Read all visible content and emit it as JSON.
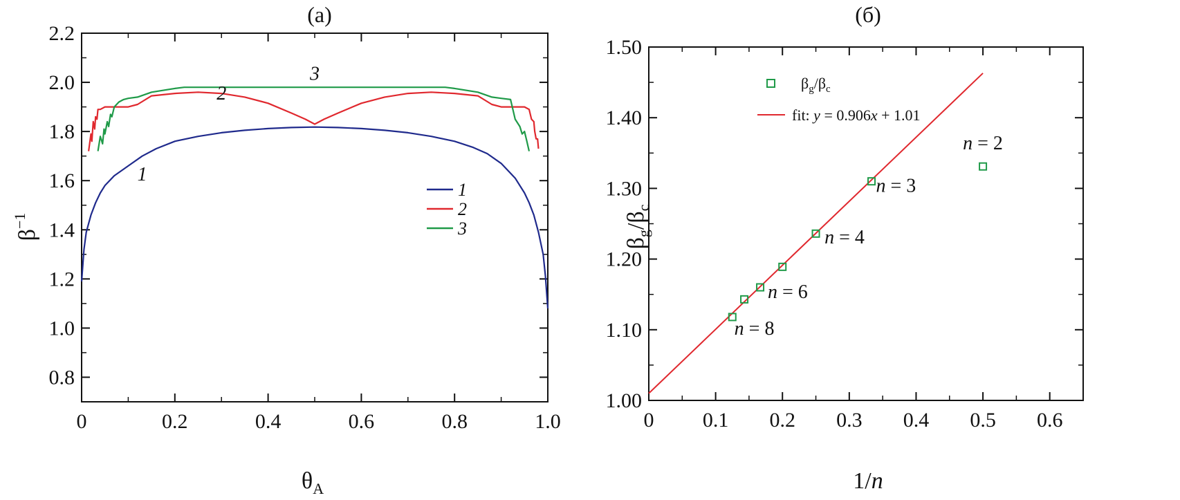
{
  "chart_data": [
    {
      "type": "line",
      "title": "(a)",
      "xlabel": "θ",
      "xlabel_sub": "A",
      "ylabel": "β",
      "ylabel_sup": "−1",
      "xlim": [
        0,
        1.0
      ],
      "ylim": [
        0.7,
        2.2
      ],
      "xticks": [
        0,
        0.2,
        0.4,
        0.6,
        0.8,
        1.0
      ],
      "xtick_labels": [
        "0",
        "0.2",
        "0.4",
        "0.6",
        "0.8",
        "1.0"
      ],
      "yticks": [
        0.8,
        1.0,
        1.2,
        1.4,
        1.6,
        1.8,
        2.0,
        2.2
      ],
      "ytick_labels": [
        "0.8",
        "1.0",
        "1.2",
        "1.4",
        "1.6",
        "1.8",
        "2.0",
        "2.2"
      ],
      "legend": {
        "position": "center-right",
        "entries": [
          "1",
          "2",
          "3"
        ]
      },
      "series": [
        {
          "name": "1",
          "color": "#1f2a8c",
          "x": [
            0.0,
            0.005,
            0.01,
            0.02,
            0.03,
            0.04,
            0.05,
            0.07,
            0.1,
            0.13,
            0.16,
            0.2,
            0.25,
            0.3,
            0.35,
            0.4,
            0.45,
            0.5,
            0.55,
            0.6,
            0.65,
            0.7,
            0.75,
            0.8,
            0.84,
            0.87,
            0.9,
            0.93,
            0.95,
            0.96,
            0.97,
            0.98,
            0.99,
            0.995,
            1.0
          ],
          "y": [
            1.19,
            1.32,
            1.39,
            1.46,
            1.51,
            1.55,
            1.58,
            1.62,
            1.66,
            1.7,
            1.73,
            1.76,
            1.78,
            1.795,
            1.805,
            1.812,
            1.816,
            1.818,
            1.816,
            1.812,
            1.805,
            1.795,
            1.78,
            1.76,
            1.735,
            1.71,
            1.67,
            1.61,
            1.55,
            1.51,
            1.46,
            1.39,
            1.3,
            1.21,
            1.08
          ]
        },
        {
          "name": "2",
          "color": "#e0282e",
          "x": [
            0.015,
            0.02,
            0.022,
            0.025,
            0.028,
            0.03,
            0.033,
            0.035,
            0.04,
            0.05,
            0.1,
            0.12,
            0.15,
            0.2,
            0.25,
            0.3,
            0.35,
            0.4,
            0.45,
            0.48,
            0.5,
            0.52,
            0.55,
            0.6,
            0.65,
            0.7,
            0.75,
            0.8,
            0.85,
            0.88,
            0.9,
            0.95,
            0.96,
            0.965,
            0.97,
            0.972,
            0.975,
            0.978,
            0.98
          ],
          "y": [
            1.72,
            1.79,
            1.76,
            1.84,
            1.81,
            1.86,
            1.85,
            1.89,
            1.89,
            1.9,
            1.9,
            1.91,
            1.945,
            1.955,
            1.96,
            1.955,
            1.94,
            1.915,
            1.875,
            1.85,
            1.83,
            1.85,
            1.875,
            1.915,
            1.94,
            1.955,
            1.96,
            1.955,
            1.945,
            1.91,
            1.9,
            1.9,
            1.89,
            1.85,
            1.84,
            1.8,
            1.77,
            1.77,
            1.73
          ]
        },
        {
          "name": "3",
          "color": "#1f9a48",
          "x": [
            0.035,
            0.04,
            0.045,
            0.048,
            0.05,
            0.055,
            0.058,
            0.062,
            0.065,
            0.07,
            0.075,
            0.08,
            0.09,
            0.1,
            0.12,
            0.15,
            0.2,
            0.22,
            0.3,
            0.4,
            0.5,
            0.6,
            0.7,
            0.78,
            0.8,
            0.85,
            0.88,
            0.9,
            0.92,
            0.925,
            0.93,
            0.94,
            0.945,
            0.95,
            0.955,
            0.96
          ],
          "y": [
            1.72,
            1.78,
            1.75,
            1.81,
            1.79,
            1.84,
            1.82,
            1.87,
            1.86,
            1.9,
            1.91,
            1.92,
            1.93,
            1.935,
            1.94,
            1.96,
            1.975,
            1.98,
            1.98,
            1.98,
            1.98,
            1.98,
            1.98,
            1.98,
            1.975,
            1.96,
            1.94,
            1.935,
            1.93,
            1.89,
            1.85,
            1.82,
            1.79,
            1.8,
            1.76,
            1.72
          ]
        }
      ],
      "annotations": [
        {
          "text": "1",
          "x": 0.13,
          "y": 1.6
        },
        {
          "text": "2",
          "x": 0.3,
          "y": 1.93
        },
        {
          "text": "3",
          "x": 0.5,
          "y": 2.01
        }
      ]
    },
    {
      "type": "scatter",
      "title": "(б)",
      "xlabel": "1/",
      "xlabel_italic": "n",
      "ylabel": "β",
      "ylabel_sub1": "g",
      "ylabel_slash": "/β",
      "ylabel_sub2": "c",
      "xlim": [
        0,
        0.65
      ],
      "ylim": [
        1.0,
        1.5
      ],
      "xticks": [
        0,
        0.1,
        0.2,
        0.3,
        0.4,
        0.5,
        0.6
      ],
      "xtick_labels": [
        "0",
        "0.1",
        "0.2",
        "0.3",
        "0.4",
        "0.5",
        "0.6"
      ],
      "yticks": [
        1.0,
        1.1,
        1.2,
        1.3,
        1.4,
        1.5
      ],
      "ytick_labels": [
        "1.00",
        "1.10",
        "1.20",
        "1.30",
        "1.40",
        "1.50"
      ],
      "scatter": {
        "name": "βg/βc",
        "legend_label": "β",
        "legend_sub1": "g",
        "legend_slash": "/β",
        "legend_sub2": "c",
        "color": "#1f9a48",
        "x": [
          0.5,
          0.3333,
          0.25,
          0.2,
          0.1667,
          0.1429,
          0.125
        ],
        "y": [
          1.331,
          1.31,
          1.236,
          1.189,
          1.16,
          1.143,
          1.118
        ]
      },
      "fit": {
        "legend_prefix": "fit: ",
        "legend_y": "y",
        "legend_eq1": " = 0.906",
        "legend_x": "x",
        "legend_eq2": " + 1.01",
        "color": "#e0282e",
        "slope": 0.906,
        "intercept": 1.01,
        "x_range": [
          0,
          0.5
        ]
      },
      "labels": [
        {
          "n": "n",
          "text": " = 2",
          "x": 0.47,
          "y": 1.355
        },
        {
          "n": "n",
          "text": " = 3",
          "x": 0.34,
          "y": 1.295
        },
        {
          "n": "n",
          "text": " = 4",
          "x": 0.263,
          "y": 1.222
        },
        {
          "n": "n",
          "text": " = 6",
          "x": 0.178,
          "y": 1.145
        },
        {
          "n": "n",
          "text": " = 8",
          "x": 0.128,
          "y": 1.093
        }
      ],
      "legend": {
        "position": "top-left"
      }
    }
  ]
}
